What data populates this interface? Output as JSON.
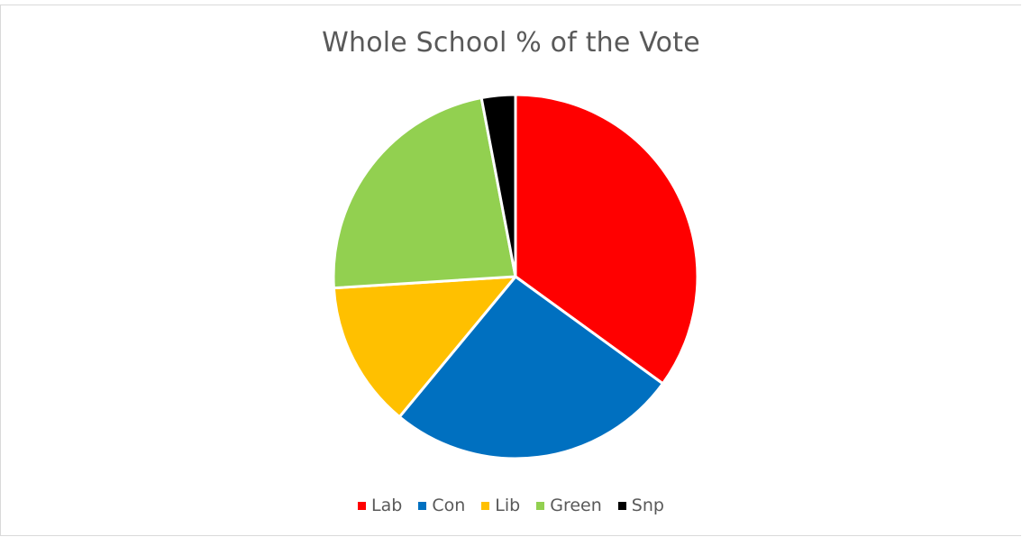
{
  "chart_data": {
    "type": "pie",
    "title": "Whole School % of the Vote",
    "categories": [
      "Lab",
      "Con",
      "Lib",
      "Green",
      "Snp"
    ],
    "values": [
      35,
      26,
      13,
      23,
      3
    ],
    "colors": [
      "#ff0000",
      "#0070c0",
      "#ffc000",
      "#92d050",
      "#000000"
    ],
    "legend_position": "bottom",
    "start_angle": "top, clockwise"
  }
}
